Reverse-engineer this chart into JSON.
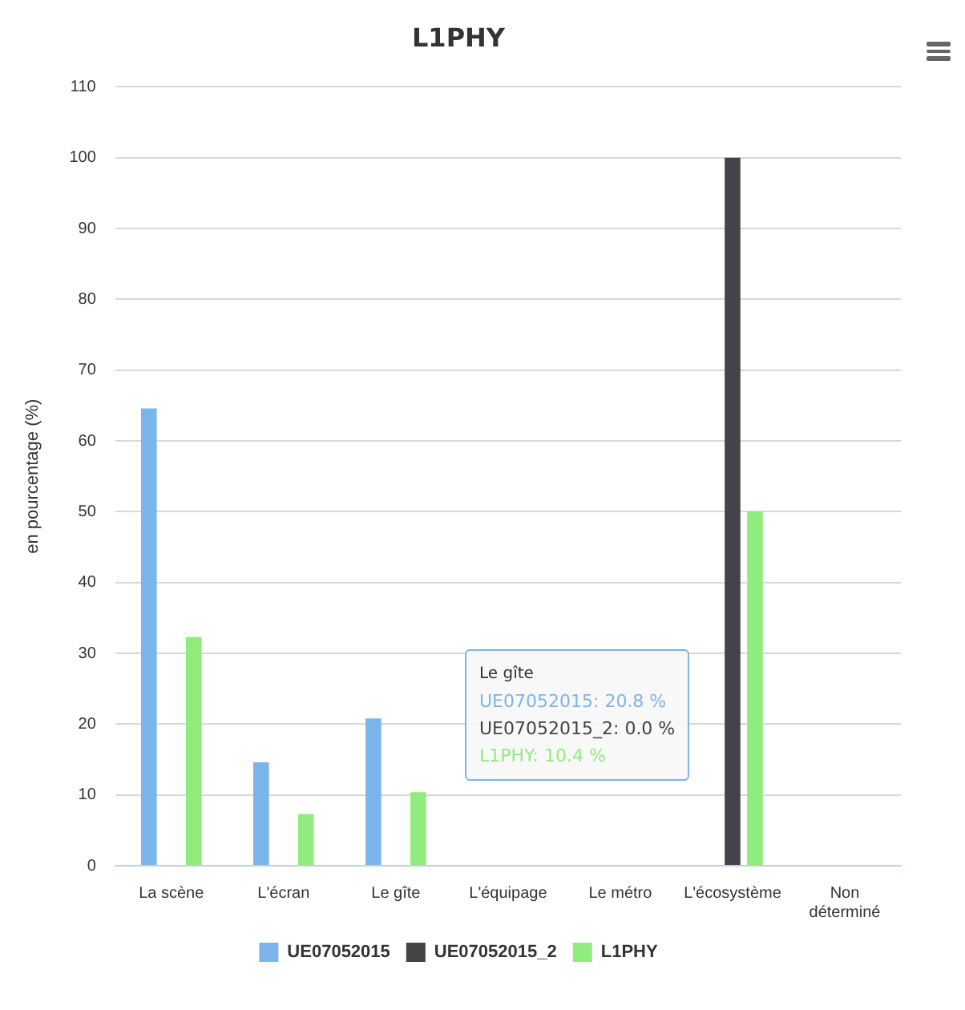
{
  "chart_data": {
    "type": "bar",
    "title": "L1PHY",
    "ylabel": "en pourcentage (%)",
    "categories": [
      "La scène",
      "L'écran",
      "Le gîte",
      "L'équipage",
      "Le métro",
      "L'écosystème",
      "Non déterminé"
    ],
    "series": [
      {
        "name": "UE07052015",
        "color": "#7cb5ec",
        "values": [
          64.6,
          14.6,
          20.8,
          0,
          0,
          0,
          0
        ]
      },
      {
        "name": "UE07052015_2",
        "color": "#434348",
        "values": [
          0,
          0,
          0,
          0,
          0,
          100,
          0
        ]
      },
      {
        "name": "L1PHY",
        "color": "#90ed7d",
        "values": [
          32.3,
          7.3,
          10.4,
          0,
          0,
          50,
          0
        ]
      }
    ],
    "ylim": [
      0,
      110
    ],
    "yticks": [
      0,
      10,
      20,
      30,
      40,
      50,
      60,
      70,
      80,
      90,
      100,
      110
    ],
    "grid": "y",
    "legend": "bottom",
    "annotations": [
      "Le gîte",
      "UE07052015: 20.8 %",
      "UE07052015_2: 0.0 %",
      "L1PHY: 10.4 %"
    ]
  }
}
